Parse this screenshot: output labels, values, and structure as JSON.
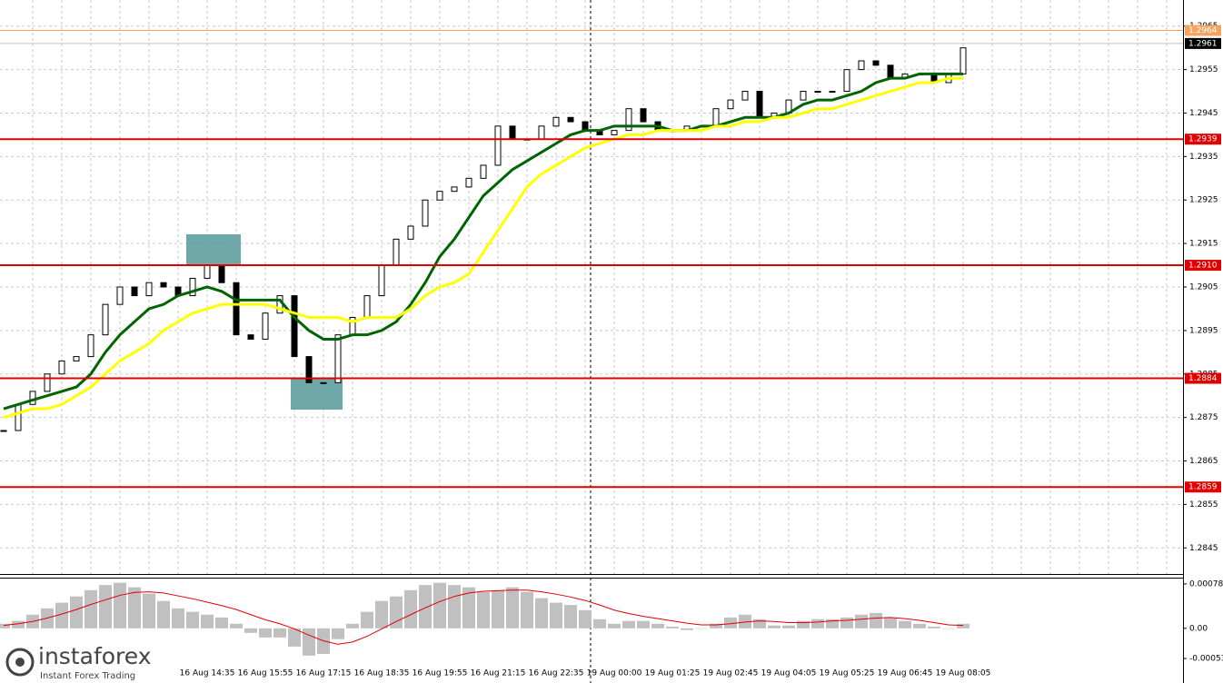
{
  "chart_data": [
    {
      "type": "candlestick",
      "categories": [
        null,
        null,
        null,
        null,
        null,
        null,
        null,
        null,
        null,
        null,
        null,
        null,
        null,
        null,
        "16 Aug 14:35",
        null,
        null,
        null,
        "16 Aug 15:55",
        null,
        null,
        null,
        "16 Aug 17:15",
        null,
        null,
        null,
        "16 Aug 18:35",
        null,
        null,
        null,
        "16 Aug 19:55",
        null,
        null,
        null,
        "16 Aug 21:15",
        null,
        null,
        null,
        "16 Aug 22:35",
        null,
        null,
        null,
        "19 Aug 00:00",
        null,
        null,
        null,
        "19 Aug 01:25",
        null,
        null,
        null,
        "19 Aug 02:45",
        null,
        null,
        null,
        "19 Aug 04:05",
        null,
        null,
        null,
        "19 Aug 05:25",
        null,
        null,
        null,
        "19 Aug 06:45",
        null,
        null,
        null,
        "19 Aug 08:05"
      ],
      "values": [
        1.2872,
        1.2878,
        1.2881,
        1.2885,
        1.2888,
        1.2889,
        1.2894,
        1.2901,
        1.2905,
        1.2903,
        1.2906,
        1.2905,
        1.2903,
        1.2907,
        1.291,
        1.2906,
        1.2894,
        1.2893,
        1.2899,
        1.2903,
        1.2889,
        1.2883,
        1.2883,
        1.2894,
        1.2898,
        1.2903,
        1.291,
        1.2916,
        1.2919,
        1.2925,
        1.2927,
        1.2928,
        1.293,
        1.2933,
        1.2942,
        1.2939,
        1.2939,
        1.2942,
        1.2944,
        1.2943,
        1.2941,
        1.294,
        1.2941,
        1.2946,
        1.2943,
        1.2941,
        1.2941,
        1.2942,
        1.2942,
        1.2946,
        1.2948,
        1.295,
        1.2944,
        1.2945,
        1.2948,
        1.295,
        1.295,
        1.295,
        1.2955,
        1.2957,
        1.2956,
        1.2953,
        1.2954,
        1.2954,
        1.2952,
        1.2954,
        1.296
      ],
      "series": [
        {
          "color": "#006400",
          "values": [
            1.2877,
            1.2878,
            1.2879,
            1.288,
            1.2881,
            1.2882,
            1.2885,
            1.289,
            1.2894,
            1.2897,
            1.29,
            1.2901,
            1.2903,
            1.2904,
            1.2905,
            1.2904,
            1.2902,
            1.2902,
            1.2902,
            1.2902,
            1.2898,
            1.2895,
            1.2893,
            1.2893,
            1.2894,
            1.2894,
            1.2895,
            1.2897,
            1.2901,
            1.2906,
            1.2912,
            1.2916,
            1.2921,
            1.2926,
            1.2929,
            1.2932,
            1.2934,
            1.2936,
            1.2938,
            1.294,
            1.2941,
            1.2941,
            1.2942,
            1.2942,
            1.2942,
            1.2942,
            1.2941,
            1.2941,
            1.2942,
            1.2942,
            1.2943,
            1.2944,
            1.2944,
            1.2944,
            1.2945,
            1.2947,
            1.2948,
            1.2948,
            1.2949,
            1.295,
            1.2952,
            1.2953,
            1.2953,
            1.2954,
            1.2954,
            1.2954,
            1.2954
          ]
        },
        {
          "color": "#ffff00",
          "values": [
            1.2875,
            1.2876,
            1.2877,
            1.2877,
            1.2878,
            1.288,
            1.2882,
            1.2885,
            1.2888,
            1.289,
            1.2892,
            1.2895,
            1.2897,
            1.2899,
            1.29,
            1.2901,
            1.2901,
            1.2901,
            1.2901,
            1.29,
            1.2899,
            1.2898,
            1.2898,
            1.2898,
            1.2897,
            1.2898,
            1.2898,
            1.2898,
            1.29,
            1.2903,
            1.2905,
            1.2906,
            1.2908,
            1.2913,
            1.2918,
            1.2923,
            1.2928,
            1.2931,
            1.2933,
            1.2935,
            1.2937,
            1.2938,
            1.2939,
            1.294,
            1.294,
            1.2941,
            1.2941,
            1.2941,
            1.2941,
            1.2942,
            1.2942,
            1.2943,
            1.2943,
            1.2944,
            1.2944,
            1.2945,
            1.2946,
            1.2946,
            1.2947,
            1.2948,
            1.2949,
            1.295,
            1.2951,
            1.2952,
            1.2952,
            1.2953,
            1.2953
          ]
        }
      ],
      "ylim": [
        1.2839,
        1.2971
      ],
      "yticks": [
        1.2965,
        1.2955,
        1.2945,
        1.2935,
        1.2925,
        {
          "value": 1.2915,
          "label": "1.2915"
        },
        1.2905,
        1.2895,
        1.2885,
        1.2875,
        1.2865,
        1.2855,
        1.2845
      ],
      "levels": [
        {
          "value": 1.2964,
          "color": "#f4a460"
        },
        {
          "value": 1.2961,
          "color": "#000000"
        },
        {
          "value": 1.2939,
          "color": "#e00000"
        },
        {
          "value": 1.291,
          "label": "1.2910",
          "color": "#e00000"
        },
        {
          "value": 1.2884,
          "color": "#e00000"
        },
        {
          "value": 1.2859,
          "color": "#e00000"
        }
      ],
      "grid": true
    },
    {
      "type": "macd",
      "values": [
        8e-05,
        0.00013,
        0.00024,
        0.00035,
        0.00045,
        0.00056,
        0.00067,
        0.00076,
        0.0008,
        0.00072,
        0.00061,
        0.00048,
        0.00035,
        0.00029,
        0.00024,
        0.00019,
        8e-05,
        -8e-05,
        -0.00016,
        -0.00016,
        -0.00032,
        -0.00048,
        -0.00045,
        -0.00019,
        8e-05,
        0.00029,
        0.00048,
        0.00056,
        0.00067,
        0.00076,
        0.0008,
        0.00076,
        0.00072,
        0.00064,
        0.00067,
        0.00072,
        0.00064,
        0.00053,
        0.00045,
        0.00041,
        0.00032,
        0.00016,
        8e-05,
        0.00013,
        0.00013,
        8e-05,
        3e-05,
        -3e-05,
        0,
        8e-05,
        0.00019,
        0.00024,
        0.00016,
        5e-05,
        5e-05,
        0.00013,
        0.00016,
        0.00016,
        0.00019,
        0.00024,
        0.00027,
        0.00019,
        0.00013,
        8e-05,
        3e-05,
        0,
        8e-05
      ],
      "color": "#c0c0c0",
      "series": [
        {
          "color": "#e00000",
          "values": [
            5e-05,
            8e-05,
            0.00012,
            0.00018,
            0.00025,
            0.00033,
            0.00042,
            0.0005,
            0.00058,
            0.00063,
            0.00064,
            0.00062,
            0.00057,
            0.00052,
            0.00046,
            0.0004,
            0.00033,
            0.00024,
            0.00015,
            8e-05,
            -1e-05,
            -0.00012,
            -0.00022,
            -0.00028,
            -0.00024,
            -0.00014,
            -1e-05,
            0.00012,
            0.00024,
            0.00036,
            0.00047,
            0.00056,
            0.00062,
            0.00065,
            0.00066,
            0.00067,
            0.00067,
            0.00064,
            0.0006,
            0.00055,
            0.00049,
            0.00041,
            0.00032,
            0.00026,
            0.00021,
            0.00017,
            0.00013,
            9e-05,
            6e-05,
            6e-05,
            8e-05,
            0.00011,
            0.00013,
            0.00012,
            0.0001,
            0.0001,
            0.00011,
            0.00013,
            0.00014,
            0.00016,
            0.00018,
            0.00019,
            0.00017,
            0.00014,
            0.0001,
            6e-05,
            5e-05
          ]
        }
      ],
      "ylim": [
        -0.00096,
        0.00089
      ],
      "yticks": [
        0.00078,
        {
          "value": 0,
          "label": "0.00"
        },
        -0.00053
      ]
    }
  ],
  "logo": {
    "name": "instaforex",
    "tagline": "Instant Forex Trading"
  }
}
